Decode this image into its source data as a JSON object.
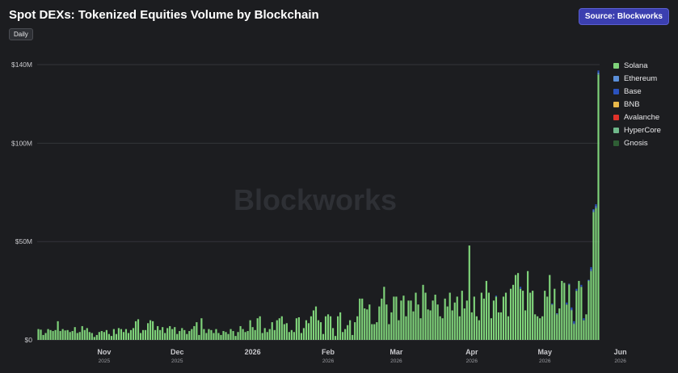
{
  "header": {
    "title": "Spot DEXs: Tokenized Equities Volume by Blockchain",
    "source_label": "Source: Blockworks",
    "frequency_label": "Daily"
  },
  "watermark": "Blockworks",
  "colors": {
    "Solana": "#7fd37a",
    "Ethereum": "#5b8fd9",
    "Base": "#2a52be",
    "BNB": "#e8b84a",
    "Avalanche": "#e0322a",
    "HyperCore": "#6fb88a",
    "Gnosis": "#2f5e35",
    "grid": "#33353a",
    "axis_text": "#c8c8cc"
  },
  "chart_data": {
    "type": "bar",
    "stacked": true,
    "title": "Spot DEXs: Tokenized Equities Volume by Blockchain",
    "xlabel": "",
    "ylabel": "",
    "ylim": [
      0,
      140
    ],
    "yunit": "M USD",
    "y_ticks": [
      {
        "value": 0,
        "label": "$0"
      },
      {
        "value": 50,
        "label": "$50M"
      },
      {
        "value": 100,
        "label": "$100M"
      },
      {
        "value": 140,
        "label": "$140M"
      }
    ],
    "x_ticks": [
      {
        "date": "2025-11-01",
        "label": "Nov",
        "sub": "2025"
      },
      {
        "date": "2025-12-01",
        "label": "Dec",
        "sub": "2025"
      },
      {
        "date": "2026-01-01",
        "label": "2026",
        "sub": ""
      },
      {
        "date": "2026-02-01",
        "label": "Feb",
        "sub": "2026"
      },
      {
        "date": "2026-03-01",
        "label": "Mar",
        "sub": "2026"
      },
      {
        "date": "2026-04-01",
        "label": "Apr",
        "sub": "2026"
      },
      {
        "date": "2026-05-01",
        "label": "May",
        "sub": "2026"
      },
      {
        "date": "2026-06-01",
        "label": "Jun",
        "sub": "2026"
      }
    ],
    "x_start": "2025-10-05",
    "legend_position": "right",
    "grid": true,
    "series": [
      {
        "name": "Solana",
        "values": [
          5.5,
          5.2,
          2.5,
          3.5,
          5.5,
          5,
          4.5,
          5,
          9.5,
          4.5,
          5.5,
          4.8,
          5,
          4,
          4.5,
          6.5,
          3.5,
          4,
          7,
          5,
          6,
          4,
          3.5,
          1.5,
          2.5,
          4,
          4.5,
          4,
          5,
          3,
          2,
          5.5,
          3,
          6,
          5.5,
          4,
          5.5,
          3.5,
          5,
          6,
          9.5,
          10.5,
          3.5,
          5,
          5,
          8.5,
          10,
          9.5,
          5,
          7,
          5,
          6.5,
          3.5,
          6,
          7,
          5.5,
          6.5,
          3,
          4.5,
          6,
          5,
          3,
          4.5,
          5.5,
          7,
          9,
          2.5,
          11,
          5.5,
          3.5,
          5.5,
          5,
          3.5,
          5.5,
          3.5,
          2.5,
          4.5,
          4,
          3,
          5.5,
          4.5,
          2,
          4,
          7,
          5.5,
          4,
          4.5,
          10,
          6.5,
          5,
          11,
          12,
          3.5,
          6,
          4,
          5.5,
          9,
          5,
          10,
          11,
          12,
          8,
          8.5,
          4,
          5,
          4,
          11,
          11.5,
          3.5,
          6,
          10,
          8.5,
          12,
          15,
          17,
          10,
          9,
          3,
          12,
          13,
          12,
          6,
          2,
          12,
          14,
          4,
          5.5,
          7.5,
          10,
          2.5,
          9,
          12,
          21,
          21,
          16,
          15.5,
          18,
          8,
          8,
          9,
          17,
          21,
          27,
          18,
          8,
          14,
          22,
          22,
          10,
          20,
          22.5,
          12,
          20,
          20,
          14.5,
          24,
          18,
          11,
          28,
          24,
          15.5,
          15,
          20,
          23,
          18,
          12,
          11,
          21,
          17,
          24,
          15,
          19,
          22,
          12,
          25,
          16,
          20,
          48,
          14,
          22,
          12,
          10,
          24,
          21,
          30,
          24,
          11,
          20,
          22,
          14,
          14,
          22,
          24,
          12,
          26,
          28,
          33,
          34,
          26,
          25,
          15,
          35,
          24,
          25,
          13,
          12,
          11,
          12,
          25,
          22,
          33,
          18,
          26,
          13,
          16,
          30,
          29,
          18,
          28,
          15,
          8,
          25,
          30,
          27,
          10,
          13,
          30,
          35,
          65,
          67,
          135
        ]
      },
      {
        "name": "Ethereum",
        "values": [
          0,
          0,
          0,
          0,
          0,
          0,
          0,
          0,
          0,
          0,
          0,
          0,
          0,
          0,
          0,
          0,
          0,
          0,
          0,
          0,
          0,
          0,
          0,
          0,
          0,
          0,
          0,
          0,
          0,
          0,
          0,
          0,
          0,
          0,
          0,
          0,
          0,
          0,
          0,
          0,
          0,
          0,
          0,
          0,
          0,
          0,
          0,
          0,
          0,
          0,
          0,
          0,
          0,
          0,
          0,
          0,
          0,
          0,
          0,
          0,
          0,
          0,
          0,
          0,
          0,
          0,
          0,
          0,
          0,
          0,
          0,
          0,
          0,
          0,
          0,
          0,
          0,
          0,
          0,
          0,
          0,
          0,
          0,
          0,
          0,
          0,
          0,
          0,
          0,
          0,
          0,
          0,
          0,
          0,
          0,
          0,
          0,
          0,
          0,
          0,
          0,
          0,
          0,
          0,
          0,
          0,
          0,
          0,
          0,
          0,
          0,
          0,
          0,
          0,
          0,
          0,
          0,
          0,
          0,
          0,
          0,
          0,
          0,
          0,
          0,
          0,
          0,
          0,
          0,
          0,
          0,
          0,
          0,
          0,
          0,
          0,
          0,
          0,
          0,
          0,
          0,
          0,
          0,
          0,
          0,
          0,
          0,
          0,
          0,
          0,
          0,
          0,
          0,
          0,
          0,
          0,
          0,
          0,
          0,
          0,
          0,
          0,
          0,
          0,
          0,
          0,
          0,
          0,
          0,
          0,
          0,
          0,
          0,
          0,
          0,
          0,
          0,
          0,
          0,
          0,
          0,
          0,
          0,
          0,
          0,
          0,
          0,
          0,
          0,
          0,
          0,
          0,
          0,
          0,
          0,
          0,
          0,
          0,
          0,
          0,
          0,
          0,
          0,
          0,
          0,
          0,
          0,
          0,
          0,
          0,
          0,
          0,
          0,
          0.5,
          0,
          0,
          0,
          0,
          0.5,
          0.5,
          0.5,
          0,
          0,
          0,
          0,
          0,
          0.5,
          1,
          1,
          1,
          1,
          1,
          2,
          2,
          1,
          1,
          1
        ]
      },
      {
        "name": "Base",
        "values": [
          0,
          0,
          0,
          0,
          0,
          0,
          0,
          0,
          0,
          0,
          0,
          0,
          0,
          0,
          0,
          0,
          0,
          0,
          0,
          0,
          0,
          0,
          0,
          0,
          0,
          0,
          0,
          0,
          0,
          0,
          0,
          0,
          0,
          0,
          0,
          0,
          0,
          0,
          0,
          0,
          0,
          0,
          0,
          0,
          0,
          0,
          0,
          0,
          0,
          0,
          0,
          0,
          0,
          0,
          0,
          0,
          0,
          0,
          0,
          0,
          0,
          0,
          0,
          0,
          0,
          0,
          0,
          0,
          0,
          0,
          0,
          0,
          0,
          0,
          0,
          0,
          0,
          0,
          0,
          0,
          0,
          0,
          0,
          0,
          0,
          0,
          0,
          0,
          0,
          0,
          0,
          0,
          0,
          0,
          0,
          0,
          0,
          0,
          0,
          0,
          0,
          0,
          0,
          0,
          0,
          0,
          0,
          0,
          0,
          0,
          0,
          0,
          0,
          0,
          0,
          0,
          0,
          0,
          0,
          0,
          0,
          0,
          0,
          0,
          0,
          0,
          0,
          0,
          0,
          0,
          0,
          0,
          0,
          0,
          0,
          0,
          0,
          0,
          0,
          0,
          0,
          0,
          0,
          0,
          0,
          0,
          0,
          0,
          0,
          0,
          0,
          0,
          0,
          0,
          0,
          0,
          0,
          0,
          0,
          0,
          0,
          0,
          0,
          0,
          0,
          0,
          0,
          0,
          0,
          0,
          0,
          0,
          0,
          0,
          0,
          0,
          0,
          0,
          0,
          0,
          0,
          0,
          0,
          0,
          0,
          0,
          0,
          0,
          0.5,
          0,
          0,
          0,
          0,
          0,
          0,
          0,
          0,
          0,
          1,
          0,
          0,
          0,
          0,
          0,
          0,
          0,
          0,
          0,
          0,
          0,
          0,
          0.5,
          0,
          0,
          0,
          0,
          0,
          1,
          0,
          1,
          1,
          1,
          0,
          1,
          1,
          0,
          0,
          1,
          0.5,
          1,
          1,
          1,
          0.5,
          1,
          2,
          1,
          3,
          2,
          1,
          1,
          1,
          1,
          4,
          2,
          2,
          2,
          2,
          1.5,
          1
        ]
      },
      {
        "name": "BNB",
        "values": [
          0,
          0,
          0,
          0,
          0,
          0,
          0,
          0,
          0,
          0,
          0,
          0,
          0,
          0,
          0,
          0,
          0,
          0,
          0,
          0,
          0,
          0,
          0,
          0,
          0,
          0,
          0,
          0,
          0,
          0,
          0,
          0,
          0,
          0,
          0,
          0,
          0,
          0,
          0,
          0,
          0,
          0,
          0,
          0,
          0,
          0,
          0,
          0,
          0,
          0,
          0,
          0,
          0,
          0,
          0,
          0,
          0,
          0,
          0,
          0,
          0,
          0,
          0,
          0,
          0,
          0,
          0,
          0,
          0,
          0,
          0,
          0,
          0,
          0,
          0,
          0,
          0,
          0,
          0,
          0,
          0,
          0,
          0,
          0,
          0,
          0,
          0,
          0,
          0,
          0,
          0,
          0,
          0,
          0,
          0,
          0,
          0,
          0,
          0,
          0,
          0,
          0,
          0,
          0,
          0,
          0,
          0,
          0,
          0,
          0,
          0,
          0,
          0,
          0,
          0,
          0,
          0,
          0,
          0,
          0,
          0,
          0,
          0,
          0,
          0,
          0,
          0,
          0,
          0,
          0,
          0,
          0,
          0,
          0,
          0,
          0,
          0,
          0,
          0,
          0,
          0,
          0,
          0,
          0,
          0,
          0,
          0,
          0,
          0,
          0,
          0,
          0,
          0,
          0,
          0,
          0,
          0,
          0,
          0,
          0,
          0,
          0,
          0,
          0,
          0,
          0,
          0,
          0,
          0,
          0,
          0,
          0,
          0,
          0,
          0,
          0,
          0,
          0,
          0,
          0,
          0,
          0,
          0,
          0,
          0,
          0,
          0,
          0,
          0,
          0,
          0,
          0,
          0,
          0,
          0,
          0,
          0,
          0,
          0,
          0,
          0,
          0,
          0,
          0,
          0,
          0,
          0,
          0,
          0,
          0,
          0,
          0,
          0,
          0,
          0,
          0,
          0,
          0,
          0,
          0,
          0,
          0,
          0,
          0,
          0,
          0,
          0,
          0,
          0,
          0,
          0,
          0,
          0,
          0,
          0,
          0,
          0,
          0,
          0,
          0,
          0,
          0,
          0,
          0,
          0.5,
          0,
          1,
          2,
          3
        ]
      },
      {
        "name": "Avalanche",
        "values": []
      },
      {
        "name": "HyperCore",
        "values": []
      },
      {
        "name": "Gnosis",
        "values": []
      }
    ]
  }
}
